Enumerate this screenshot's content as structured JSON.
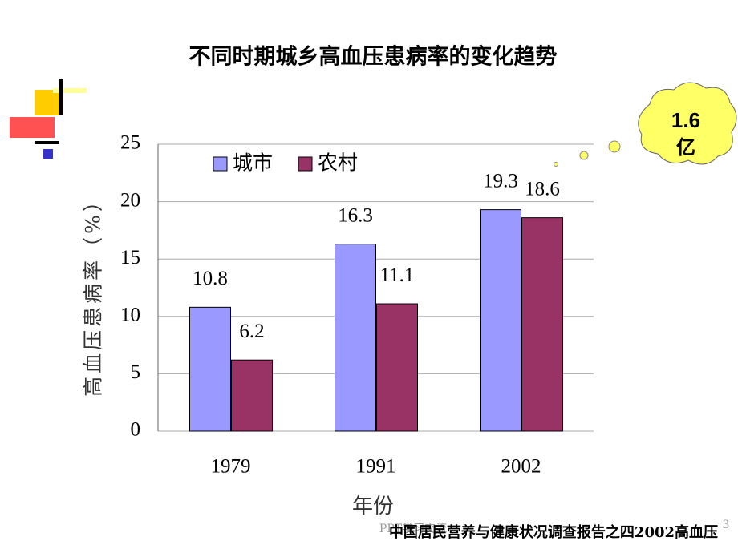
{
  "chart_data": {
    "type": "bar",
    "title": "不同时期城乡高血压患病率的变化趋势",
    "categories": [
      "1979",
      "1991",
      "2002"
    ],
    "series": [
      {
        "name": "城市",
        "color": "#9999ff",
        "values": [
          10.8,
          16.3,
          19.3
        ]
      },
      {
        "name": "农村",
        "color": "#993366",
        "values": [
          6.2,
          11.1,
          18.6
        ]
      }
    ],
    "ylim": [
      0,
      25
    ],
    "yticks": [
      0,
      5,
      10,
      15,
      20,
      25
    ],
    "grid": true,
    "y_label": "高血压患病率（%）",
    "x_label": "年份",
    "annotation": [
      "1.6",
      "亿"
    ]
  },
  "slide": {
    "source": "中国居民营养与健康状况调查报告之四2002高血压",
    "watermark": "PPT学习交流",
    "page": "3"
  }
}
